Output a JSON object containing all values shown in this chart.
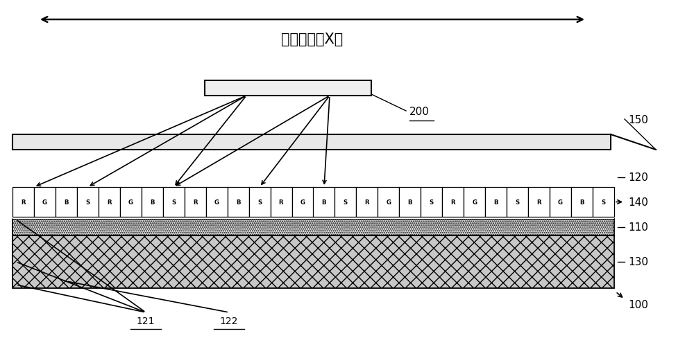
{
  "title": "第一方向（X）",
  "bg_color": "#ffffff",
  "label_200": "200",
  "label_150": "150",
  "label_120": "120",
  "label_140": "140",
  "label_110": "110",
  "label_130": "130",
  "label_100": "100",
  "label_121": "121",
  "label_122": "122",
  "pixel_sequence": [
    "R",
    "G",
    "B",
    "S",
    "R",
    "G",
    "B",
    "S",
    "R",
    "G",
    "B",
    "S",
    "R",
    "G",
    "B",
    "S",
    "R",
    "G",
    "B",
    "S",
    "R",
    "G",
    "B",
    "S",
    "R",
    "G",
    "B",
    "S"
  ],
  "layer_130_color": "#c8c8c8",
  "layer_110_color": "#e0e0e0",
  "layer_150_color": "#e8e8e8",
  "sensor_color": "#f0f0f0"
}
